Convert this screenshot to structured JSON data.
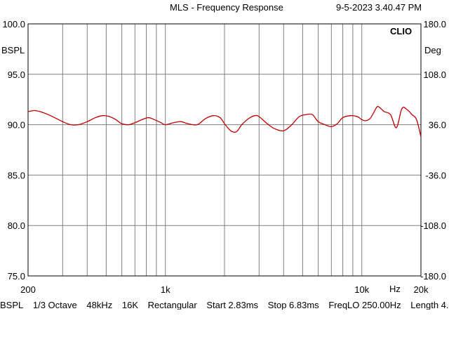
{
  "header": {
    "title": "MLS - Frequency Response",
    "datetime": "9-5-2023 3.40.47 PM",
    "brand": "CLIO"
  },
  "axes": {
    "left_unit": "BSPL",
    "right_unit": "Deg",
    "x_unit": "Hz"
  },
  "footer": [
    "BSPL",
    "1/3 Octave",
    "48kHz",
    "16K",
    "Rectangular",
    "Start 2.83ms",
    "Stop 6.83ms",
    "FreqLO 250.00Hz",
    "Length 4."
  ],
  "chart_data": {
    "type": "line",
    "title": "MLS - Frequency Response",
    "x_scale": "log",
    "xlim": [
      200,
      20000
    ],
    "ylim": [
      75,
      100
    ],
    "ylim_right": [
      -180,
      180
    ],
    "y_ticks": [
      "100.0",
      "95.0",
      "90.0",
      "85.0",
      "80.0",
      "75.0"
    ],
    "y_right_ticks": [
      "180.0",
      "108.0",
      "36.0",
      "-36.0",
      "-108.0",
      "-180.0"
    ],
    "x_tick_labels": [
      {
        "value": 200,
        "label": "200"
      },
      {
        "value": 1000,
        "label": "1k"
      },
      {
        "value": 10000,
        "label": "10k"
      },
      {
        "value": 20000,
        "label": "20k"
      }
    ],
    "grid": true,
    "line_color": "#c00000",
    "series": [
      {
        "x": [
          200,
          215,
          230,
          260,
          300,
          330,
          360,
          400,
          440,
          480,
          520,
          560,
          600,
          650,
          700,
          760,
          820,
          880,
          950,
          1000,
          1100,
          1200,
          1300,
          1450,
          1600,
          1750,
          1900,
          2000,
          2150,
          2300,
          2450,
          2650,
          2850,
          3000,
          3300,
          3600,
          4000,
          4400,
          4800,
          5200,
          5600,
          6000,
          6500,
          7000,
          7500,
          8000,
          8800,
          9500,
          10000,
          10500,
          11000,
          11500,
          12000,
          12500,
          13000,
          14000,
          15000,
          16000,
          17000,
          18000,
          19000,
          20000
        ],
        "y": [
          91.3,
          91.4,
          91.3,
          90.9,
          90.3,
          90.0,
          90.0,
          90.3,
          90.7,
          90.9,
          90.8,
          90.5,
          90.1,
          90.0,
          90.2,
          90.5,
          90.7,
          90.5,
          90.2,
          90.0,
          90.2,
          90.3,
          90.1,
          90.0,
          90.6,
          90.9,
          90.7,
          90.1,
          89.4,
          89.3,
          90.0,
          90.6,
          90.9,
          90.8,
          90.1,
          89.6,
          89.4,
          90.0,
          90.8,
          91.0,
          91.0,
          90.3,
          90.0,
          89.8,
          90.1,
          90.7,
          90.9,
          90.8,
          90.5,
          90.4,
          90.6,
          91.2,
          91.8,
          91.6,
          91.3,
          91.0,
          89.7,
          91.6,
          91.5,
          91.0,
          90.5,
          88.8
        ]
      }
    ]
  }
}
